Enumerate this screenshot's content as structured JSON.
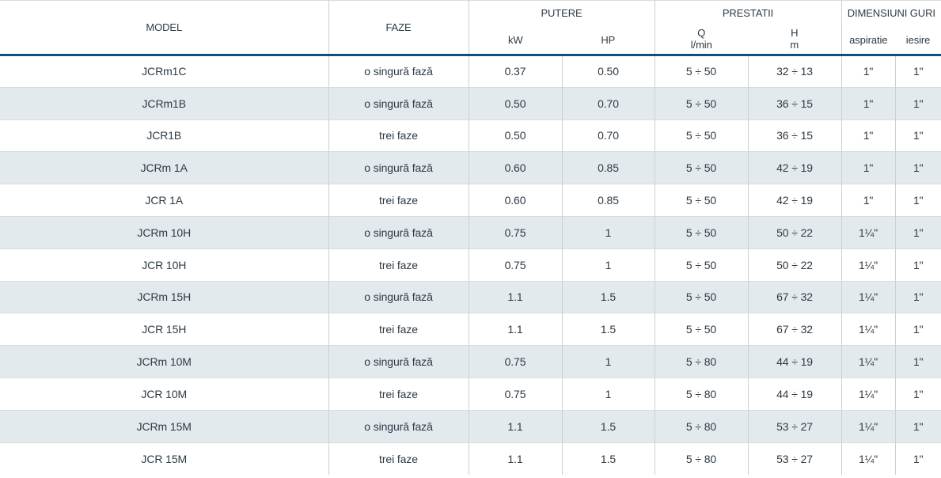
{
  "colors": {
    "accent_line": "#124f7d",
    "stripe_row": "#e3eaee",
    "text": "#2c3a45",
    "border_vertical": "#cbd0d3",
    "border_horizontal": "#d9dcde"
  },
  "table": {
    "header": {
      "model": "MODEL",
      "faze": "FAZE",
      "putere": "PUTERE",
      "kw": "kW",
      "hp": "HP",
      "prestatii": "PRESTATII",
      "q_symbol": "Q",
      "q_unit": "l/min",
      "h_symbol": "H",
      "h_unit": "m",
      "dimensiuni": "DIMENSIUNI GURI",
      "aspiratie": "aspiratie",
      "iesire": "iesire"
    },
    "rows": [
      {
        "model": "JCRm1C",
        "faze": "o singură fază",
        "kw": "0.37",
        "hp": "0.50",
        "q": "5 ÷ 50",
        "h": "32 ÷ 13",
        "aspiratie": "1\"",
        "iesire": "1\""
      },
      {
        "model": "JCRm1B",
        "faze": "o singură fază",
        "kw": "0.50",
        "hp": "0.70",
        "q": "5 ÷ 50",
        "h": "36 ÷ 15",
        "aspiratie": "1\"",
        "iesire": "1\""
      },
      {
        "model": "JCR1B",
        "faze": "trei faze",
        "kw": "0.50",
        "hp": "0.70",
        "q": "5 ÷ 50",
        "h": "36 ÷ 15",
        "aspiratie": "1\"",
        "iesire": "1\""
      },
      {
        "model": "JCRm 1A",
        "faze": "o singură fază",
        "kw": "0.60",
        "hp": "0.85",
        "q": "5 ÷ 50",
        "h": "42 ÷ 19",
        "aspiratie": "1\"",
        "iesire": "1\""
      },
      {
        "model": "JCR 1A",
        "faze": "trei faze",
        "kw": "0.60",
        "hp": "0.85",
        "q": "5 ÷ 50",
        "h": "42 ÷ 19",
        "aspiratie": "1\"",
        "iesire": "1\""
      },
      {
        "model": "JCRm 10H",
        "faze": "o singură fază",
        "kw": "0.75",
        "hp": "1",
        "q": "5 ÷ 50",
        "h": "50 ÷ 22",
        "aspiratie": "1¼\"",
        "iesire": "1\""
      },
      {
        "model": "JCR 10H",
        "faze": "trei faze",
        "kw": "0.75",
        "hp": "1",
        "q": "5 ÷ 50",
        "h": "50 ÷ 22",
        "aspiratie": "1¼\"",
        "iesire": "1\""
      },
      {
        "model": "JCRm 15H",
        "faze": "o singură fază",
        "kw": "1.1",
        "hp": "1.5",
        "q": "5 ÷ 50",
        "h": "67 ÷ 32",
        "aspiratie": "1¼\"",
        "iesire": "1\""
      },
      {
        "model": "JCR 15H",
        "faze": "trei faze",
        "kw": "1.1",
        "hp": "1.5",
        "q": "5 ÷ 50",
        "h": "67 ÷ 32",
        "aspiratie": "1¼\"",
        "iesire": "1\""
      },
      {
        "model": "JCRm 10M",
        "faze": "o singură fază",
        "kw": "0.75",
        "hp": "1",
        "q": "5 ÷ 80",
        "h": "44 ÷ 19",
        "aspiratie": "1¼\"",
        "iesire": "1\""
      },
      {
        "model": "JCR 10M",
        "faze": "trei faze",
        "kw": "0.75",
        "hp": "1",
        "q": "5 ÷ 80",
        "h": "44 ÷ 19",
        "aspiratie": "1¼\"",
        "iesire": "1\""
      },
      {
        "model": "JCRm 15M",
        "faze": "o singură fază",
        "kw": "1.1",
        "hp": "1.5",
        "q": "5 ÷ 80",
        "h": "53 ÷ 27",
        "aspiratie": "1¼\"",
        "iesire": "1\""
      },
      {
        "model": "JCR 15M",
        "faze": "trei faze",
        "kw": "1.1",
        "hp": "1.5",
        "q": "5 ÷ 80",
        "h": "53 ÷ 27",
        "aspiratie": "1¼\"",
        "iesire": "1\""
      }
    ]
  }
}
